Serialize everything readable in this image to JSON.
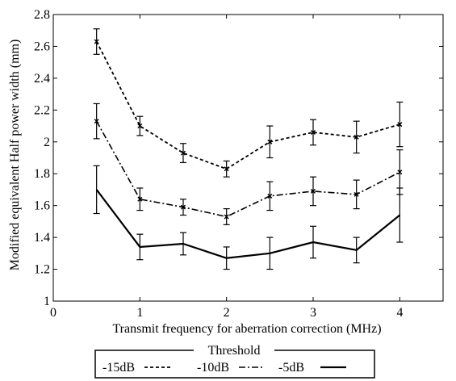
{
  "chart_data": {
    "type": "line",
    "title": "",
    "xlabel": "Transmit frequency for aberration correction (MHz)",
    "ylabel": "Modified equivalent Half power width (mm)",
    "xlim": [
      0,
      4.5
    ],
    "ylim": [
      1,
      2.8
    ],
    "x_ticks": [
      0,
      1,
      2,
      3,
      4
    ],
    "x_tick_labels": [
      "0",
      "1",
      "2",
      "3",
      "4"
    ],
    "y_ticks": [
      1,
      1.2,
      1.4,
      1.6,
      1.8,
      2,
      2.2,
      2.4,
      2.6,
      2.8
    ],
    "y_tick_labels": [
      "1",
      "1.2",
      "1.4",
      "1.6",
      "1.8",
      "2",
      "2.2",
      "2.4",
      "2.6",
      "2.8"
    ],
    "grid": false,
    "legend": {
      "title": "Threshold",
      "position": "bottom-center"
    },
    "x": [
      0.5,
      1,
      1.5,
      2,
      2.5,
      3,
      3.5,
      4
    ],
    "series": [
      {
        "name": "-15dB",
        "line_style": "dotted",
        "color": "#000000",
        "values": [
          2.63,
          2.1,
          1.93,
          1.83,
          2.0,
          2.06,
          2.03,
          2.11
        ],
        "error": [
          0.08,
          0.06,
          0.06,
          0.05,
          0.1,
          0.08,
          0.1,
          0.14
        ]
      },
      {
        "name": "-10dB",
        "line_style": "dash-dot",
        "color": "#000000",
        "values": [
          2.13,
          1.64,
          1.59,
          1.53,
          1.66,
          1.69,
          1.67,
          1.81
        ],
        "error": [
          0.11,
          0.07,
          0.05,
          0.05,
          0.09,
          0.09,
          0.09,
          0.14
        ]
      },
      {
        "name": "-5dB",
        "line_style": "solid",
        "color": "#000000",
        "values": [
          1.7,
          1.34,
          1.36,
          1.27,
          1.3,
          1.37,
          1.32,
          1.54
        ],
        "error": [
          0.15,
          0.08,
          0.07,
          0.07,
          0.1,
          0.1,
          0.08,
          0.17
        ]
      }
    ]
  }
}
